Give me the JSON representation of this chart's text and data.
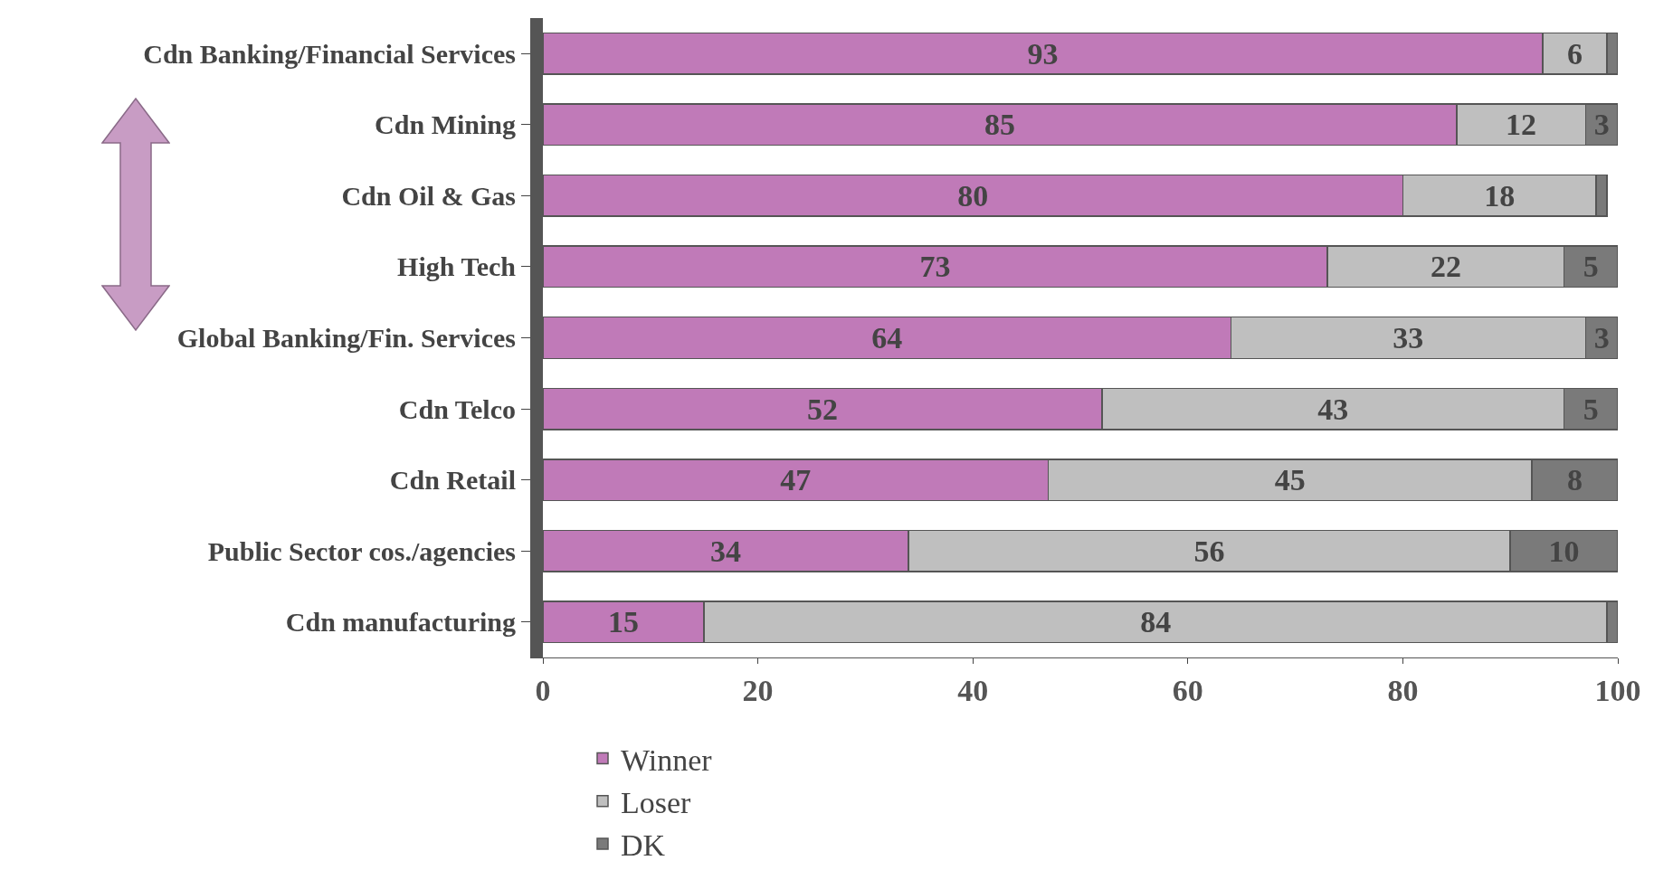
{
  "chart_data": {
    "type": "bar",
    "orientation": "horizontal",
    "stacked": true,
    "categories": [
      "Cdn Banking/Financial Services",
      "Cdn Mining",
      "Cdn Oil & Gas",
      "High Tech",
      "Global Banking/Fin. Services",
      "Cdn Telco",
      "Cdn Retail",
      "Public Sector cos./agencies",
      "Cdn manufacturing"
    ],
    "series": [
      {
        "name": "Winner",
        "color": "#c07ab8",
        "values": [
          93,
          85,
          80,
          73,
          64,
          52,
          47,
          34,
          15
        ],
        "value_labels": [
          "93",
          "85",
          "80",
          "73",
          "64",
          "52",
          "47",
          "34",
          "15"
        ]
      },
      {
        "name": "Loser",
        "color": "#bfbfbf",
        "values": [
          6,
          12,
          18,
          22,
          33,
          43,
          45,
          56,
          84
        ],
        "value_labels": [
          "6",
          "12",
          "18",
          "22",
          "33",
          "43",
          "45",
          "56",
          "84"
        ]
      },
      {
        "name": "DK",
        "color": "#7a7a7a",
        "values": [
          1,
          3,
          1,
          5,
          3,
          5,
          8,
          10,
          1
        ],
        "value_labels": [
          null,
          "3",
          null,
          "5",
          "3",
          "5",
          "8",
          "10",
          null
        ]
      }
    ],
    "xlim": [
      0,
      100
    ],
    "xticks": [
      0,
      20,
      40,
      60,
      80,
      100
    ],
    "grid": false,
    "legend": "bottom"
  }
}
